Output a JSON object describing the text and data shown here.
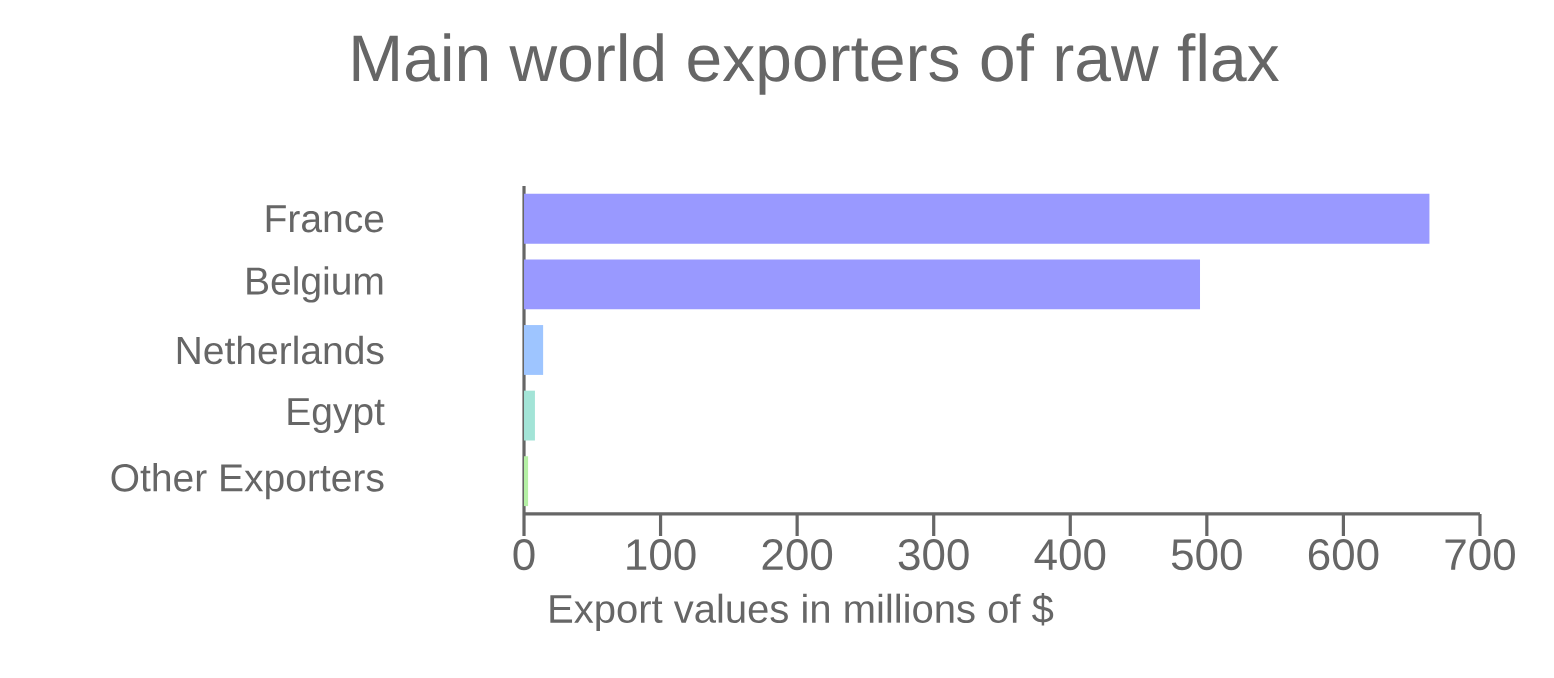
{
  "chart_data": {
    "type": "bar",
    "orientation": "horizontal",
    "title": "Main world exporters of raw flax",
    "xlabel": "Export values in millions of $",
    "categories": [
      "France",
      "Belgium",
      "Netherlands",
      "Egypt",
      "Other Exporters"
    ],
    "values": [
      663,
      495,
      14,
      8,
      3
    ],
    "colors": [
      "#9999ff",
      "#9999ff",
      "#9ec5ff",
      "#a3e4d7",
      "#b5f0a5"
    ],
    "xlim": [
      0,
      700
    ],
    "xticks": [
      0,
      100,
      200,
      300,
      400,
      500,
      600,
      700
    ]
  }
}
